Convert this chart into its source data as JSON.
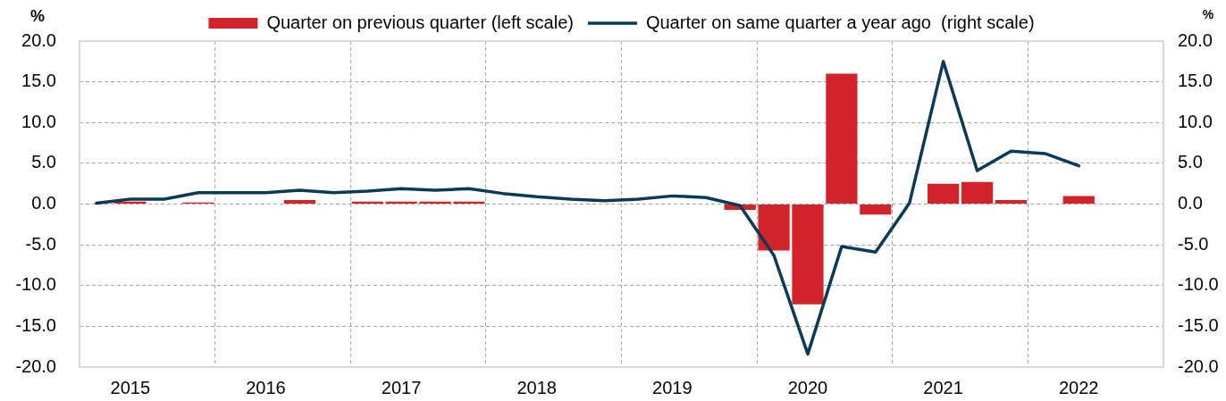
{
  "chart_data": {
    "type": "bar",
    "categories": [
      null,
      "2015",
      null,
      null,
      null,
      "2016",
      null,
      null,
      null,
      "2017",
      null,
      null,
      null,
      "2018",
      null,
      null,
      null,
      "2019",
      null,
      null,
      null,
      "2020",
      null,
      null,
      null,
      "2021",
      null,
      null,
      null,
      "2022",
      null,
      null
    ],
    "series": [
      {
        "name": "Quarter on previous quarter (left scale)",
        "color": "#d2232a",
        "values": [
          0,
          0.3,
          0,
          0.2,
          0,
          0,
          0.5,
          0,
          0.3,
          0.3,
          0.3,
          0.3,
          0,
          0,
          0,
          0,
          0,
          0,
          0,
          -0.7,
          -5.7,
          -12.3,
          16.0,
          -1.3,
          0,
          2.5,
          2.7,
          0.5,
          0,
          1.0,
          null,
          null
        ]
      },
      {
        "name": "Quarter on same quarter a year ago  (right scale)",
        "type": "line",
        "axis": "y2",
        "color": "#0b3a57",
        "values": [
          0.1,
          0.6,
          0.6,
          1.4,
          1.4,
          1.4,
          1.7,
          1.4,
          1.6,
          1.9,
          1.7,
          1.9,
          1.3,
          0.9,
          0.6,
          0.4,
          0.6,
          1.0,
          0.8,
          -0.2,
          -6.3,
          -18.4,
          -5.2,
          -5.9,
          0.1,
          17.5,
          4.1,
          6.5,
          6.2,
          4.7,
          null,
          null
        ]
      }
    ],
    "ylabel": "%",
    "y2label": "%",
    "ylim": [
      -20,
      20
    ],
    "yticks": [
      {
        "value": -20,
        "label": "-20.0"
      },
      {
        "value": -15,
        "label": "-15.0"
      },
      {
        "value": -10,
        "label": "-10.0"
      },
      {
        "value": -5,
        "label": "-5.0"
      },
      {
        "value": 0,
        "label": "0.0"
      },
      {
        "value": 5,
        "label": "5.0"
      },
      {
        "value": 10,
        "label": "10.0"
      },
      {
        "value": 15,
        "label": "15.0"
      },
      {
        "value": 20,
        "label": "20.0"
      }
    ],
    "y2lim": [
      -20,
      20
    ],
    "y2ticks": [
      {
        "value": -20,
        "label": "-20.0"
      },
      {
        "value": -15,
        "label": "-15.0"
      },
      {
        "value": -10,
        "label": "-10.0"
      },
      {
        "value": -5,
        "label": "-5.0"
      },
      {
        "value": 0,
        "label": "0.0"
      },
      {
        "value": 5,
        "label": "5.0"
      },
      {
        "value": 10,
        "label": "10.0"
      },
      {
        "value": 15,
        "label": "15.0"
      },
      {
        "value": 20,
        "label": "20.0"
      }
    ],
    "grid": true,
    "legend": "top",
    "marker": "none"
  }
}
